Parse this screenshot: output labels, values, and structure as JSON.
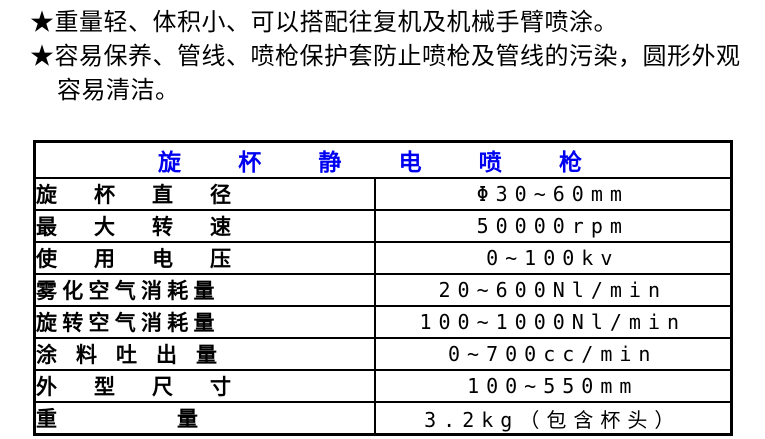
{
  "features": {
    "bullet_symbol": "★",
    "items": [
      "重量轻、体积小、可以搭配往复机及机械手臂喷涂。",
      "容易保养、管线、喷枪保护套防止喷枪及管线的污染，圆形外观容易清洁。"
    ]
  },
  "spec_table": {
    "title": "旋 杯 静 电 喷 枪",
    "rows": [
      {
        "label": "旋 杯 直 径",
        "value": "Φ30~60mm"
      },
      {
        "label": "最 大 转 速",
        "value": "50000rpm"
      },
      {
        "label": "使 用 电 压",
        "value": "0~100kv"
      },
      {
        "label": "雾 化 空 气 消 耗 量",
        "value": "20~600Nl/min"
      },
      {
        "label": "旋 转 空 气 消 耗 量",
        "value": "100~1000Nl/min"
      },
      {
        "label": "涂 料 吐 出 量",
        "value": "0~700cc/min"
      },
      {
        "label": "外 型 尺 寸",
        "value": "100~550mm"
      },
      {
        "label": "重 量",
        "value": "3.2kg（包含杯头）"
      }
    ]
  },
  "colors": {
    "title_blue": "#0000f0",
    "text_black": "#000000",
    "border_black": "#000000",
    "background": "#ffffff"
  }
}
